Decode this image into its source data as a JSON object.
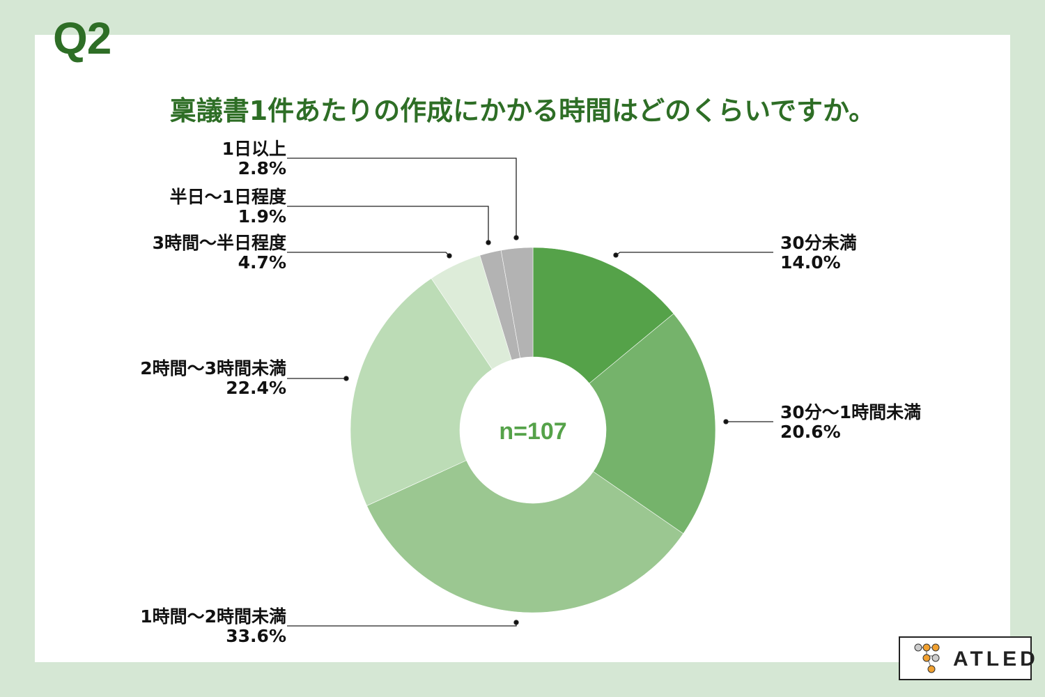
{
  "question_no": "Q2",
  "title": "稟議書1件あたりの作成にかかる時間はどのくらいですか。",
  "logo_text": "ATLED",
  "background_color": "#d5e7d4",
  "accent_color": "#2e6e26",
  "chart_data": {
    "type": "donut",
    "center_label": "n=107",
    "categories": [
      "30分未満",
      "30分〜1時間未満",
      "1時間〜2時間未満",
      "2時間〜3時間未満",
      "3時間〜半日程度",
      "半日〜1日程度",
      "1日以上"
    ],
    "values": [
      14.0,
      20.6,
      33.6,
      22.4,
      4.7,
      1.9,
      2.8
    ],
    "value_labels": [
      "14.0%",
      "20.6%",
      "33.6%",
      "22.4%",
      "4.7%",
      "1.9%",
      "2.8%"
    ],
    "colors": [
      "#55a249",
      "#75b36b",
      "#9bc791",
      "#bcdcb6",
      "#ddecd9",
      "#b3b3b3",
      "#b3b3b3"
    ],
    "unit": "%"
  }
}
